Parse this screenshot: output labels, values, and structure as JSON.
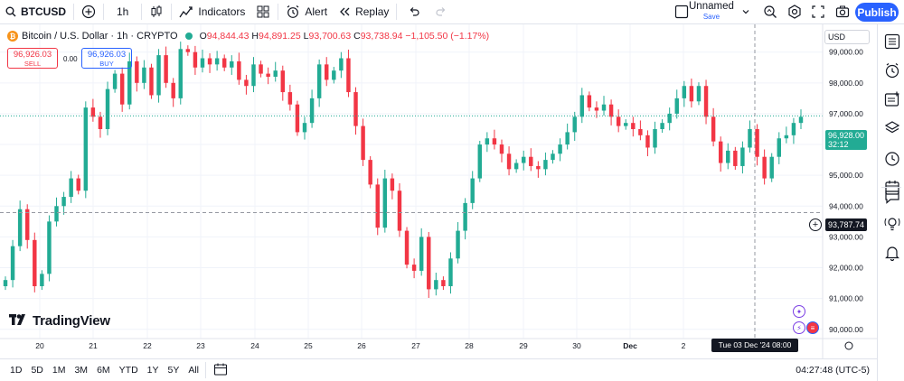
{
  "toolbar": {
    "symbol": "BTCUSD",
    "interval": "1h",
    "indicators_label": "Indicators",
    "alert_label": "Alert",
    "replay_label": "Replay",
    "layout_name": "Unnamed",
    "layout_status": "Save",
    "publish_label": "Publish"
  },
  "legend": {
    "title": "Bitcoin / U.S. Dollar · 1h · CRYPTO",
    "o_label": "O",
    "o_value": "94,844.43",
    "h_label": "H",
    "h_value": "94,891.25",
    "l_label": "L",
    "l_value": "93,700.63",
    "c_label": "C",
    "c_value": "93,738.94",
    "change": "−1,105.50 (−1.17%)"
  },
  "trade": {
    "sell_price": "96,926.03",
    "sell_label": "SELL",
    "spread": "0.00",
    "buy_price": "96,926.03",
    "buy_label": "BUY"
  },
  "brand": "TradingView",
  "price_axis": {
    "currency": "USD",
    "last_price": "96,928.00",
    "countdown": "32:12",
    "crosshair_price": "93,787.74"
  },
  "crosshair_time": "Tue 03 Dec '24   08:00",
  "bottom": {
    "ranges": [
      "1D",
      "5D",
      "1M",
      "3M",
      "6M",
      "YTD",
      "1Y",
      "5Y",
      "All"
    ],
    "clock": "04:27:48 (UTC-5)"
  },
  "colors": {
    "up": "#22ab94",
    "down": "#f23645",
    "accent": "#2962ff"
  },
  "chart_data": {
    "type": "candlestick",
    "y_ticks": [
      99000,
      98000,
      97000,
      96000,
      95000,
      94000,
      93000,
      92000,
      91000,
      90000
    ],
    "y_tick_labels": [
      "99,000.00",
      "98,000.00",
      "97,000.00",
      "96,000.00",
      "95,000.00",
      "94,000.00",
      "93,000.00",
      "92,000.00",
      "91,000.00",
      "90,000.00"
    ],
    "x_tick_labels": [
      "20",
      "21",
      "22",
      "23",
      "24",
      "25",
      "26",
      "27",
      "28",
      "29",
      "30",
      "Dec",
      "2"
    ],
    "ylim": [
      89700,
      99900
    ],
    "last_price": 96928,
    "crosshair_price": 93788,
    "closes": [
      91600,
      92700,
      93900,
      92900,
      91400,
      91800,
      93500,
      94000,
      94300,
      94900,
      94500,
      97200,
      96900,
      96500,
      97800,
      98300,
      97300,
      98700,
      98000,
      98500,
      97600,
      98900,
      98000,
      97500,
      99100,
      99000,
      98500,
      98800,
      98600,
      98800,
      98500,
      98700,
      98100,
      97900,
      98600,
      98300,
      98200,
      98400,
      97700,
      97300,
      96400,
      96700,
      97500,
      98600,
      98100,
      98400,
      98800,
      97700,
      96600,
      95500,
      94700,
      93300,
      94900,
      94500,
      93200,
      92100,
      91900,
      93000,
      91300,
      91600,
      91400,
      92300,
      93200,
      94100,
      94900,
      96000,
      96200,
      96000,
      95700,
      95200,
      95400,
      95600,
      95300,
      95200,
      95500,
      95700,
      96000,
      96400,
      96900,
      97600,
      97200,
      97100,
      97300,
      96900,
      96600,
      96700,
      96500,
      96300,
      95900,
      96500,
      96700,
      97000,
      97500,
      97900,
      97400,
      97900,
      96900,
      96100,
      95400,
      95800,
      95300,
      95900,
      96500,
      95600,
      94900,
      95600,
      96200,
      96300,
      96700,
      96900
    ]
  }
}
